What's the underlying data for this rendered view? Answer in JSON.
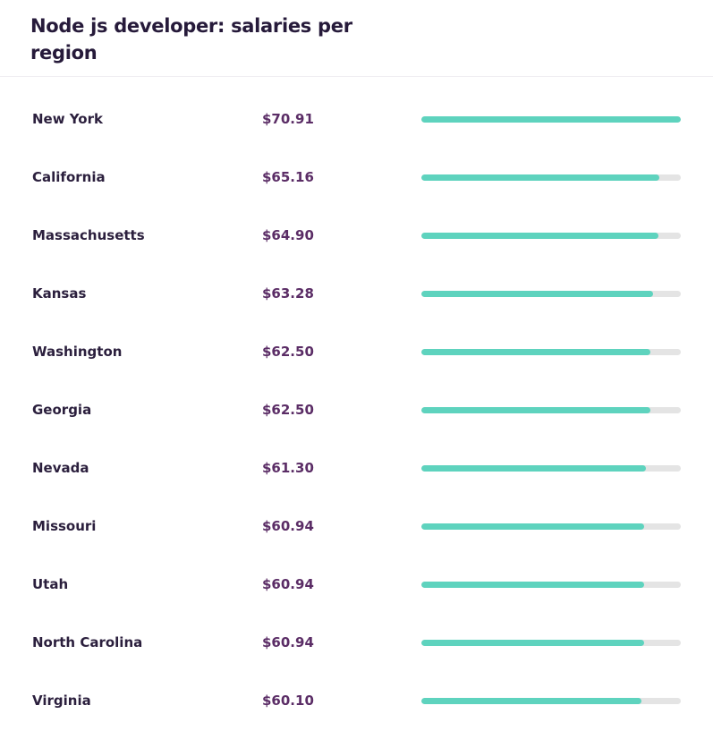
{
  "chart_data": {
    "type": "bar",
    "orientation": "horizontal",
    "title": "Node js developer: salaries per region",
    "categories": [
      "New York",
      "California",
      "Massachusetts",
      "Kansas",
      "Washington",
      "Georgia",
      "Nevada",
      "Missouri",
      "Utah",
      "North Carolina",
      "Virginia"
    ],
    "value_labels": [
      "$70.91",
      "$65.16",
      "$64.90",
      "$63.28",
      "$62.50",
      "$62.50",
      "$61.30",
      "$60.94",
      "$60.94",
      "$60.94",
      "$60.10"
    ],
    "values": [
      70.91,
      65.16,
      64.9,
      63.28,
      62.5,
      62.5,
      61.3,
      60.94,
      60.94,
      60.94,
      60.1
    ],
    "xlim": [
      0,
      70.91
    ],
    "colors": {
      "bar": "#5ed3be",
      "track": "#e4e4e4",
      "value_text": "#5b2d66",
      "label_text": "#2b1f3d"
    }
  }
}
